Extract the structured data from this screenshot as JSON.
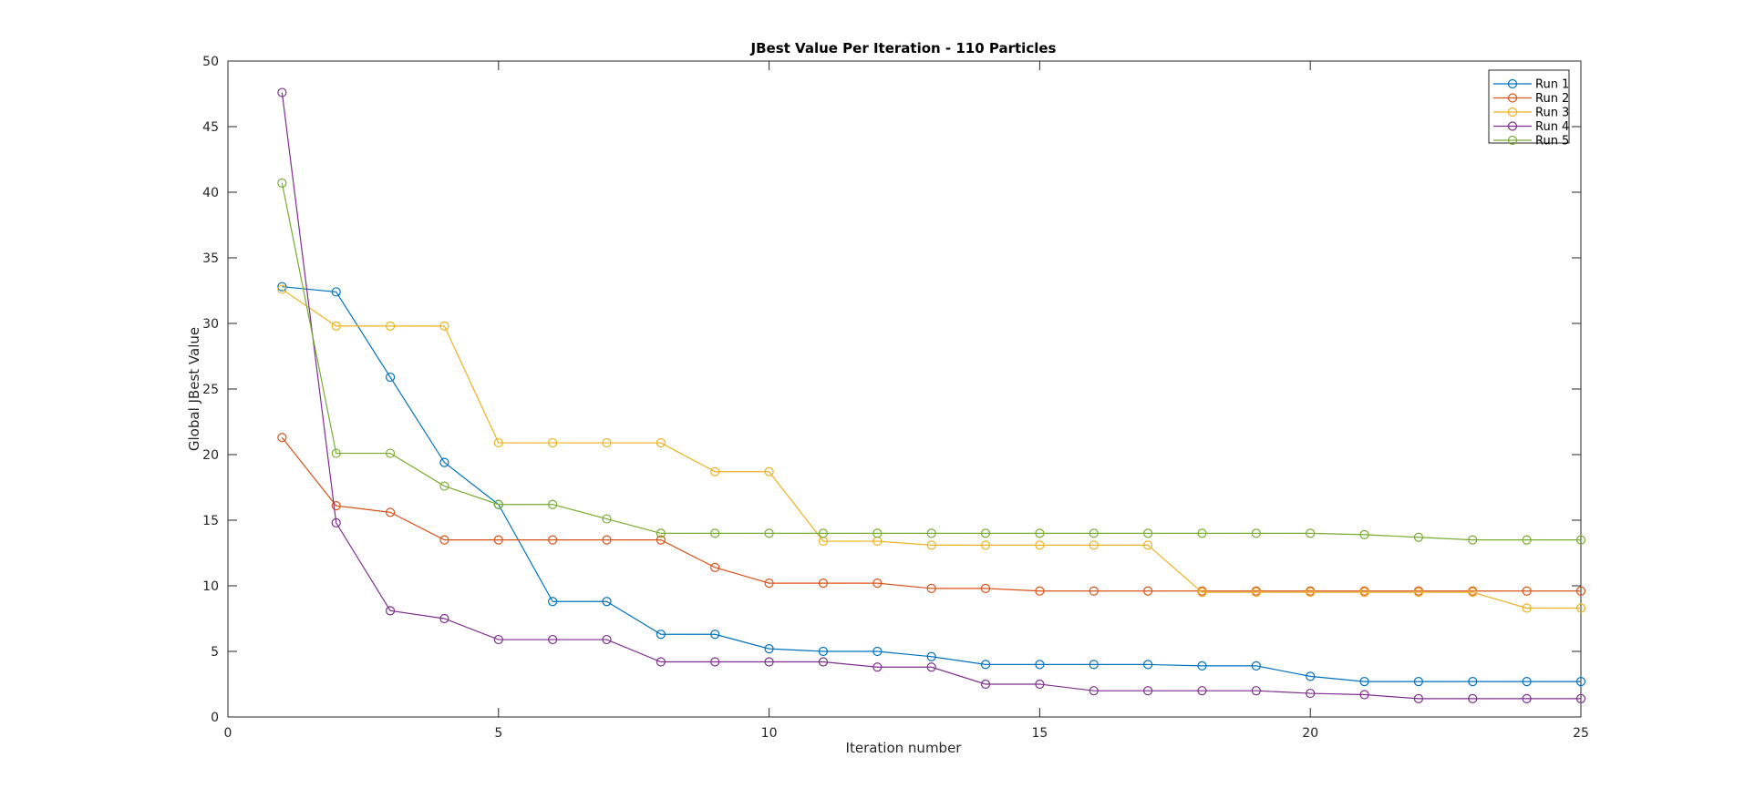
{
  "chart_data": {
    "type": "line",
    "title": "JBest Value Per Iteration - 110 Particles",
    "xlabel": "Iteration number",
    "ylabel": "Global JBest Value",
    "xlim": [
      0,
      25
    ],
    "ylim": [
      0,
      50
    ],
    "xticks": [
      0,
      5,
      10,
      15,
      20,
      25
    ],
    "yticks": [
      0,
      5,
      10,
      15,
      20,
      25,
      30,
      35,
      40,
      45,
      50
    ],
    "grid": false,
    "legend_position": "top-right",
    "marker": "circle",
    "x": [
      1,
      2,
      3,
      4,
      5,
      6,
      7,
      8,
      9,
      10,
      11,
      12,
      13,
      14,
      15,
      16,
      17,
      18,
      19,
      20,
      21,
      22,
      23,
      24,
      25
    ],
    "series": [
      {
        "name": "Run 1",
        "color": "#0072BD",
        "values": [
          32.8,
          32.4,
          25.9,
          19.4,
          16.2,
          8.8,
          8.8,
          6.3,
          6.3,
          5.2,
          5.0,
          5.0,
          4.6,
          4.0,
          4.0,
          4.0,
          4.0,
          3.9,
          3.9,
          3.1,
          2.7,
          2.7,
          2.7,
          2.7,
          2.7
        ]
      },
      {
        "name": "Run 2",
        "color": "#D95319",
        "values": [
          21.3,
          16.1,
          15.6,
          13.5,
          13.5,
          13.5,
          13.5,
          13.5,
          11.4,
          10.2,
          10.2,
          10.2,
          9.8,
          9.8,
          9.6,
          9.6,
          9.6,
          9.6,
          9.6,
          9.6,
          9.6,
          9.6,
          9.6,
          9.6,
          9.6
        ]
      },
      {
        "name": "Run 3",
        "color": "#EDB120",
        "values": [
          32.6,
          29.8,
          29.8,
          29.8,
          20.9,
          20.9,
          20.9,
          20.9,
          18.7,
          18.7,
          13.4,
          13.4,
          13.1,
          13.1,
          13.1,
          13.1,
          13.1,
          9.5,
          9.5,
          9.5,
          9.5,
          9.5,
          9.5,
          8.3,
          8.3
        ]
      },
      {
        "name": "Run 4",
        "color": "#7E2F8E",
        "values": [
          47.6,
          14.8,
          8.1,
          7.5,
          5.9,
          5.9,
          5.9,
          4.2,
          4.2,
          4.2,
          4.2,
          3.8,
          3.8,
          2.5,
          2.5,
          2.0,
          2.0,
          2.0,
          2.0,
          1.8,
          1.7,
          1.4,
          1.4,
          1.4,
          1.4
        ]
      },
      {
        "name": "Run 5",
        "color": "#77AC30",
        "values": [
          40.7,
          20.1,
          20.1,
          17.6,
          16.2,
          16.2,
          15.1,
          14.0,
          14.0,
          14.0,
          14.0,
          14.0,
          14.0,
          14.0,
          14.0,
          14.0,
          14.0,
          14.0,
          14.0,
          14.0,
          13.9,
          13.7,
          13.5,
          13.5,
          13.5
        ]
      }
    ]
  }
}
